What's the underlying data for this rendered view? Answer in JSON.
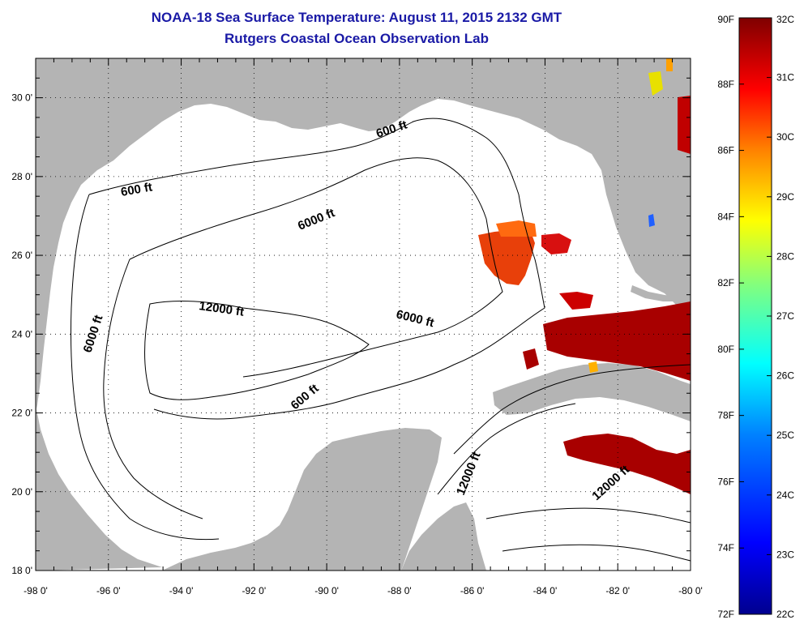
{
  "title_line1": "NOAA-18 Sea Surface Temperature:  August 11, 2015 2132 GMT",
  "title_line2": "Rutgers Coastal Ocean Observation Lab",
  "map": {
    "lon_range": [
      -98,
      -80
    ],
    "lat_range": [
      18,
      31
    ],
    "lon_ticks": [
      "-98 0'",
      "-96 0'",
      "-94 0'",
      "-92 0'",
      "-90 0'",
      "-88 0'",
      "-86 0'",
      "-84 0'",
      "-82 0'",
      "-80 0'"
    ],
    "lat_ticks": [
      "18 0'",
      "20 0'",
      "22 0'",
      "24 0'",
      "26 0'",
      "28 0'",
      "30 0'"
    ],
    "land_color": "#b4b4b4",
    "contour_labels": [
      "600 ft",
      "600 ft",
      "6000 ft",
      "12000 ft",
      "6000 ft",
      "6000 ft",
      "600 ft",
      "12000 ft",
      "12000 ft"
    ]
  },
  "colorbar": {
    "fahrenheit_labels": [
      "90F",
      "88F",
      "86F",
      "84F",
      "82F",
      "80F",
      "78F",
      "76F",
      "74F",
      "72F"
    ],
    "celsius_labels": [
      "32C",
      "31C",
      "30C",
      "29C",
      "28C",
      "27C",
      "26C",
      "25C",
      "24C",
      "23C",
      "22C"
    ],
    "colors": [
      "#7f0000",
      "#ff0000",
      "#ff8000",
      "#ffff00",
      "#80ff80",
      "#00ffff",
      "#0080ff",
      "#0000ff",
      "#00008f"
    ]
  }
}
